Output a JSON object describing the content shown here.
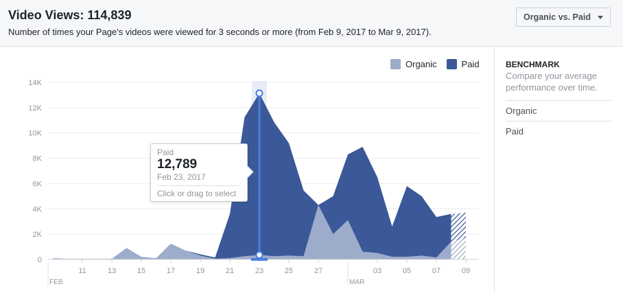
{
  "header": {
    "title": "Video Views: 114,839",
    "subtitle": "Number of times your Page's videos were viewed for 3 seconds or more (from Feb 9, 2017 to Mar 9, 2017).",
    "dropdown_label": "Organic vs. Paid"
  },
  "sidebar": {
    "heading": "BENCHMARK",
    "description": "Compare your average performance over time.",
    "items": [
      "Organic",
      "Paid"
    ]
  },
  "tooltip": {
    "series": "Paid",
    "value": "12,789",
    "date": "Feb 23, 2017",
    "hint": "Click or drag to select"
  },
  "colors": {
    "organic": "#9daccb",
    "paid": "#3b5998",
    "accent": "#4a7fe0"
  },
  "chart_data": {
    "type": "area",
    "stacked": true,
    "x": [
      "2017-02-09",
      "2017-02-10",
      "2017-02-11",
      "2017-02-12",
      "2017-02-13",
      "2017-02-14",
      "2017-02-15",
      "2017-02-16",
      "2017-02-17",
      "2017-02-18",
      "2017-02-19",
      "2017-02-20",
      "2017-02-21",
      "2017-02-22",
      "2017-02-23",
      "2017-02-24",
      "2017-02-25",
      "2017-02-26",
      "2017-02-27",
      "2017-02-28",
      "2017-03-01",
      "2017-03-02",
      "2017-03-03",
      "2017-03-04",
      "2017-03-05",
      "2017-03-06",
      "2017-03-07",
      "2017-03-08",
      "2017-03-09"
    ],
    "series": [
      {
        "name": "Organic",
        "values": [
          100,
          50,
          50,
          50,
          50,
          900,
          200,
          100,
          1250,
          700,
          300,
          50,
          100,
          250,
          350,
          250,
          300,
          250,
          4300,
          2000,
          3100,
          600,
          500,
          200,
          200,
          300,
          150,
          1400,
          1700
        ]
      },
      {
        "name": "Paid",
        "values": [
          0,
          0,
          0,
          0,
          0,
          0,
          0,
          0,
          0,
          0,
          100,
          100,
          3500,
          11000,
          12789,
          10600,
          8900,
          5200,
          0,
          3000,
          5200,
          8300,
          6000,
          2400,
          5600,
          4700,
          3200,
          2200,
          2000
        ]
      }
    ],
    "ylim": [
      0,
      14000
    ],
    "yticks": [
      0,
      2000,
      4000,
      6000,
      8000,
      10000,
      12000,
      14000
    ],
    "ytick_labels": [
      "0",
      "2K",
      "4K",
      "6K",
      "8K",
      "10K",
      "12K",
      "14K"
    ],
    "xtick_labels": [
      "11",
      "13",
      "15",
      "17",
      "19",
      "21",
      "23",
      "25",
      "27",
      "03",
      "05",
      "07",
      "09"
    ],
    "xtick_dates": [
      "2017-02-11",
      "2017-02-13",
      "2017-02-15",
      "2017-02-17",
      "2017-02-19",
      "2017-02-21",
      "2017-02-23",
      "2017-02-25",
      "2017-02-27",
      "2017-03-03",
      "2017-03-05",
      "2017-03-07",
      "2017-03-09"
    ],
    "month_labels": [
      {
        "label": "FEB",
        "date": "2017-02-09"
      },
      {
        "label": "MAR",
        "date": "2017-03-01"
      }
    ],
    "highlight_date": "2017-02-23",
    "grid": true,
    "legend": "top-right"
  }
}
